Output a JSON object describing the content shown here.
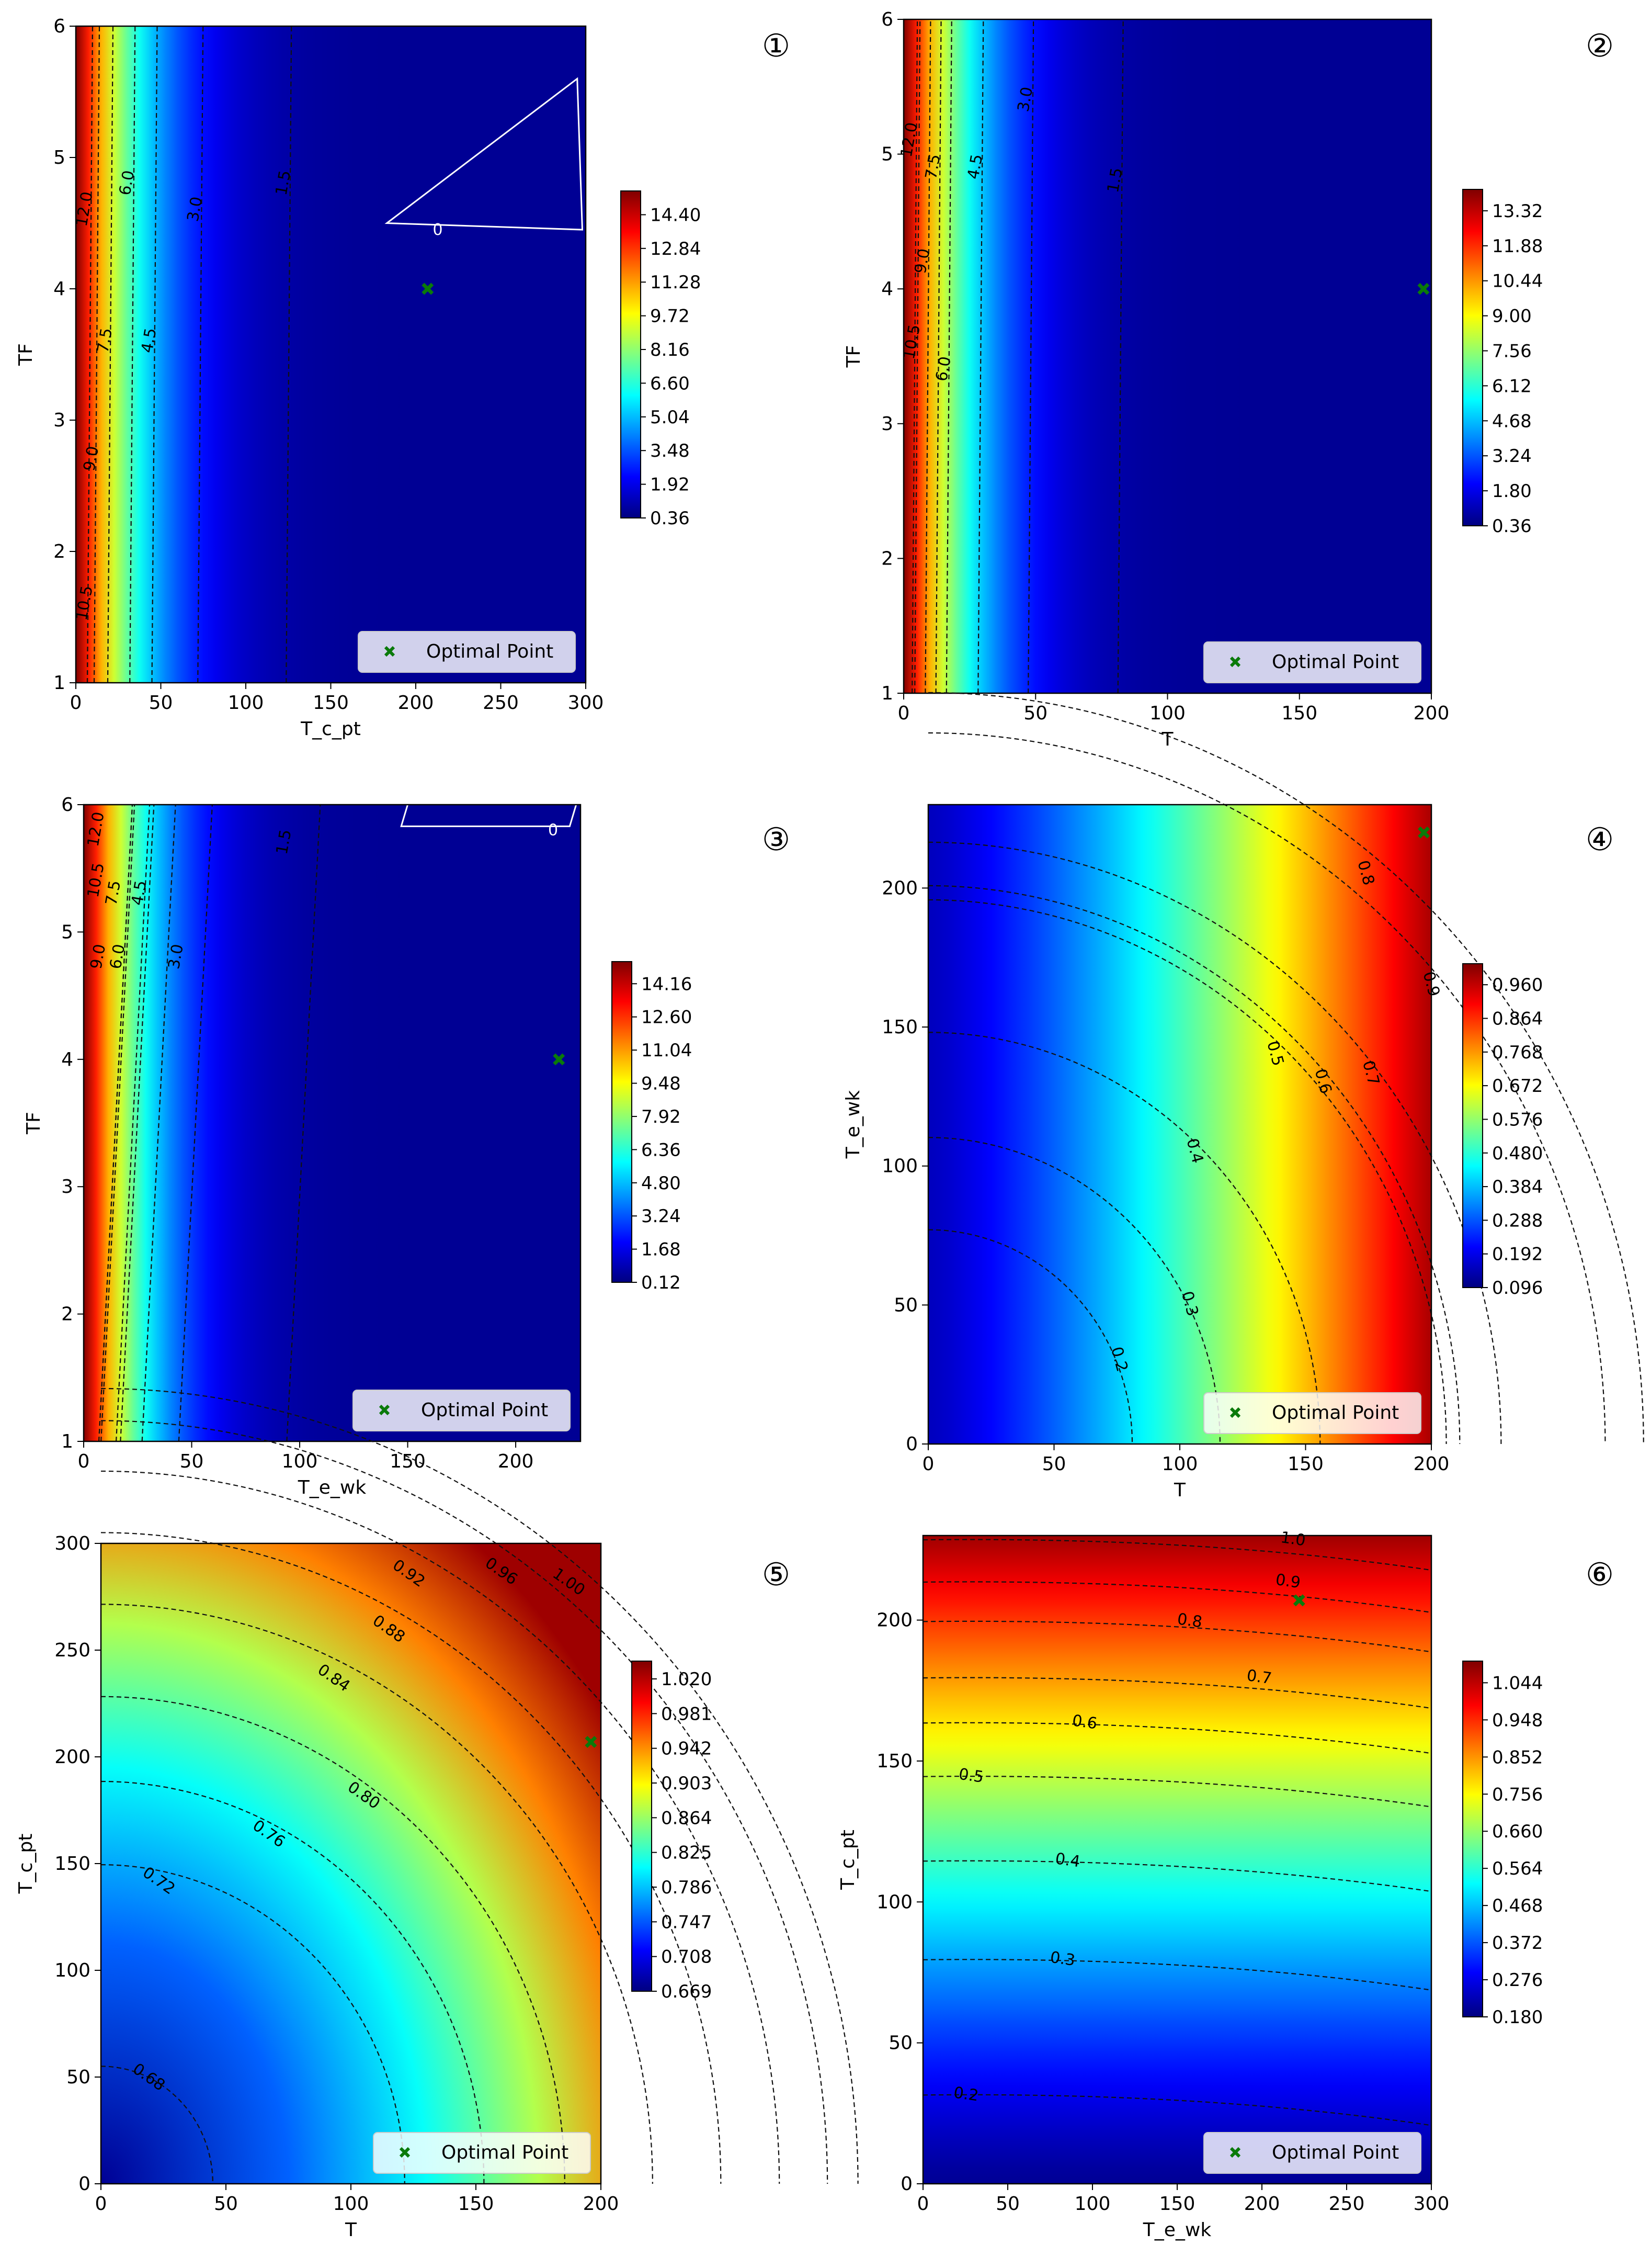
{
  "chart_data": [
    {
      "type": "heatmap",
      "subtype": "contour",
      "panel_label": "①",
      "xlabel": "T_c_pt",
      "ylabel": "TF",
      "xlim": [
        0,
        300
      ],
      "ylim": [
        1,
        6
      ],
      "xticks": [
        0,
        50,
        100,
        150,
        200,
        250,
        300
      ],
      "yticks": [
        1,
        2,
        3,
        4,
        5,
        6
      ],
      "colorbar_ticks": [
        "0.36",
        "1.92",
        "3.48",
        "5.04",
        "6.60",
        "8.16",
        "9.72",
        "11.28",
        "12.84",
        "14.40"
      ],
      "colorbar_range": [
        0.36,
        15.5
      ],
      "contour_levels": [
        {
          "label": "1.5",
          "x": 125,
          "y": 4.8
        },
        {
          "label": "3.0",
          "x": 73,
          "y": 4.6
        },
        {
          "label": "4.5",
          "x": 46,
          "y": 3.6
        },
        {
          "label": "6.0",
          "x": 33,
          "y": 4.8
        },
        {
          "label": "7.5",
          "x": 20,
          "y": 3.6
        },
        {
          "label": "9.0",
          "x": 12,
          "y": 2.7
        },
        {
          "label": "10.5",
          "x": 8,
          "y": 1.6
        },
        {
          "label": "12.0",
          "x": 8,
          "y": 4.6
        }
      ],
      "zero_label": {
        "label": "0",
        "x": 210,
        "y": 4.45
      },
      "optimal_point": {
        "x": 207,
        "y": 4.0
      },
      "legend": "Optimal Point"
    },
    {
      "type": "heatmap",
      "subtype": "contour",
      "panel_label": "②",
      "xlabel": "T",
      "ylabel": "TF",
      "xlim": [
        0,
        200
      ],
      "ylim": [
        1,
        6
      ],
      "xticks": [
        0,
        50,
        100,
        150,
        200
      ],
      "yticks": [
        1,
        2,
        3,
        4,
        5,
        6
      ],
      "colorbar_ticks": [
        "0.36",
        "1.80",
        "3.24",
        "4.68",
        "6.12",
        "7.56",
        "9.00",
        "10.44",
        "11.88",
        "13.32"
      ],
      "colorbar_range": [
        0.36,
        14.2
      ],
      "contour_levels": [
        {
          "label": "1.5",
          "x": 82,
          "y": 4.8
        },
        {
          "label": "3.0",
          "x": 48,
          "y": 5.4
        },
        {
          "label": "4.5",
          "x": 29,
          "y": 4.9
        },
        {
          "label": "6.0",
          "x": 17,
          "y": 3.4
        },
        {
          "label": "7.5",
          "x": 13,
          "y": 4.9
        },
        {
          "label": "9.0",
          "x": 9,
          "y": 4.2
        },
        {
          "label": "10.5",
          "x": 5,
          "y": 3.6
        },
        {
          "label": "12.0",
          "x": 4,
          "y": 5.1
        }
      ],
      "optimal_point": {
        "x": 197,
        "y": 4.0
      },
      "legend": "Optimal Point"
    },
    {
      "type": "heatmap",
      "subtype": "contour",
      "panel_label": "③",
      "xlabel": "T_e_wk",
      "ylabel": "TF",
      "xlim": [
        0,
        230
      ],
      "ylim": [
        1,
        6
      ],
      "xticks": [
        0,
        50,
        100,
        150,
        200
      ],
      "yticks": [
        1,
        2,
        3,
        4,
        5,
        6
      ],
      "colorbar_ticks": [
        "0.12",
        "1.68",
        "3.24",
        "4.80",
        "6.36",
        "7.92",
        "9.48",
        "11.04",
        "12.60",
        "14.16"
      ],
      "colorbar_range": [
        0.12,
        15.2
      ],
      "contour_levels": [
        {
          "label": "1.5",
          "x": 95,
          "y": 5.7
        },
        {
          "label": "3.0",
          "x": 45,
          "y": 4.8
        },
        {
          "label": "4.5",
          "x": 28,
          "y": 5.3
        },
        {
          "label": "6.0",
          "x": 18,
          "y": 4.8
        },
        {
          "label": "7.5",
          "x": 16,
          "y": 5.3
        },
        {
          "label": "9.0",
          "x": 9,
          "y": 4.8
        },
        {
          "label": "10.5",
          "x": 8,
          "y": 5.4
        },
        {
          "label": "12.0",
          "x": 8,
          "y": 5.8
        }
      ],
      "zero_label": {
        "label": "0",
        "x": 215,
        "y": 5.8
      },
      "optimal_point": {
        "x": 220,
        "y": 4.0
      },
      "legend": "Optimal Point"
    },
    {
      "type": "heatmap",
      "subtype": "contour",
      "panel_label": "④",
      "xlabel": "T",
      "ylabel": "T_e_wk",
      "xlim": [
        0,
        200
      ],
      "ylim": [
        0,
        230
      ],
      "xticks": [
        0,
        50,
        100,
        150,
        200
      ],
      "yticks": [
        0,
        50,
        100,
        150,
        200
      ],
      "colorbar_ticks": [
        "0.096",
        "0.192",
        "0.288",
        "0.384",
        "0.480",
        "0.576",
        "0.672",
        "0.768",
        "0.864",
        "0.960"
      ],
      "colorbar_range": [
        0.096,
        1.02
      ],
      "contour_levels": [
        {
          "label": "0.2",
          "x": 74,
          "y": 30
        },
        {
          "label": "0.3",
          "x": 102,
          "y": 50
        },
        {
          "label": "0.4",
          "x": 104,
          "y": 105
        },
        {
          "label": "0.5",
          "x": 136,
          "y": 140
        },
        {
          "label": "0.6",
          "x": 155,
          "y": 130
        },
        {
          "label": "0.7",
          "x": 174,
          "y": 133
        },
        {
          "label": "0.8",
          "x": 172,
          "y": 205
        },
        {
          "label": "0.9",
          "x": 198,
          "y": 165
        }
      ],
      "optimal_point": {
        "x": 197,
        "y": 220
      },
      "legend": "Optimal Point"
    },
    {
      "type": "heatmap",
      "subtype": "contour",
      "panel_label": "⑤",
      "xlabel": "T",
      "ylabel": "T_c_pt",
      "xlim": [
        0,
        200
      ],
      "ylim": [
        0,
        300
      ],
      "xticks": [
        0,
        50,
        100,
        150,
        200
      ],
      "yticks": [
        0,
        50,
        100,
        150,
        200,
        250,
        300
      ],
      "colorbar_ticks": [
        "0.669",
        "0.708",
        "0.747",
        "0.786",
        "0.825",
        "0.864",
        "0.903",
        "0.942",
        "0.981",
        "1.020"
      ],
      "colorbar_range": [
        0.669,
        1.04
      ],
      "contour_levels": [
        {
          "label": "0.68",
          "x": 18,
          "y": 48
        },
        {
          "label": "0.72",
          "x": 22,
          "y": 140
        },
        {
          "label": "0.76",
          "x": 66,
          "y": 162
        },
        {
          "label": "0.80",
          "x": 104,
          "y": 180
        },
        {
          "label": "0.84",
          "x": 92,
          "y": 235
        },
        {
          "label": "0.88",
          "x": 114,
          "y": 258
        },
        {
          "label": "0.92",
          "x": 122,
          "y": 284
        },
        {
          "label": "0.96",
          "x": 159,
          "y": 285
        },
        {
          "label": "1.00",
          "x": 186,
          "y": 280
        }
      ],
      "optimal_point": {
        "x": 196,
        "y": 207
      },
      "legend": "Optimal Point"
    },
    {
      "type": "heatmap",
      "subtype": "contour",
      "panel_label": "⑥",
      "xlabel": "T_e_wk",
      "ylabel": "T_c_pt",
      "xlim": [
        0,
        300
      ],
      "ylim": [
        0,
        230
      ],
      "xticks": [
        0,
        50,
        100,
        150,
        200,
        250,
        300
      ],
      "yticks": [
        0,
        50,
        100,
        150,
        200
      ],
      "colorbar_ticks": [
        "0.180",
        "0.276",
        "0.372",
        "0.468",
        "0.564",
        "0.660",
        "0.756",
        "0.852",
        "0.948",
        "1.044"
      ],
      "colorbar_range": [
        0.18,
        1.1
      ],
      "contour_levels": [
        {
          "label": "0.2",
          "x": 25,
          "y": 30
        },
        {
          "label": "0.3",
          "x": 82,
          "y": 78
        },
        {
          "label": "0.4",
          "x": 85,
          "y": 113
        },
        {
          "label": "0.5",
          "x": 28,
          "y": 143
        },
        {
          "label": "0.6",
          "x": 95,
          "y": 162
        },
        {
          "label": "0.7",
          "x": 198,
          "y": 178
        },
        {
          "label": "0.8",
          "x": 157,
          "y": 198
        },
        {
          "label": "0.9",
          "x": 215,
          "y": 212
        },
        {
          "label": "1.0",
          "x": 218,
          "y": 227
        }
      ],
      "optimal_point": {
        "x": 222,
        "y": 207
      },
      "legend": "Optimal Point"
    }
  ]
}
